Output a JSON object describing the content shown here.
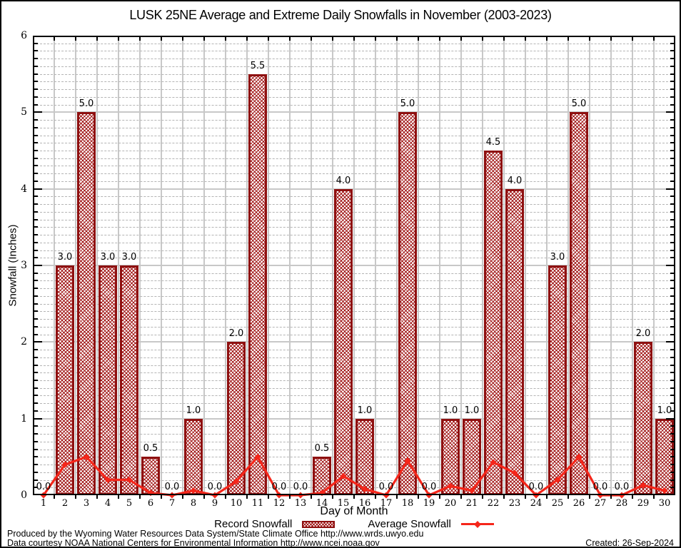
{
  "title": "LUSK 25NE Average and Extreme Daily Snowfalls in November (2003-2023)",
  "chart_data": {
    "type": "bar",
    "title": "LUSK 25NE Average and Extreme Daily Snowfalls in November (2003-2023)",
    "xlabel": "Day of Month",
    "ylabel": "Snowfall (Inches)",
    "ylim": [
      0,
      6
    ],
    "grid": {
      "y_major_step": 1,
      "y_minor_step": 0.1,
      "vertical_lines": "day boundaries"
    },
    "legend_position": "bottom-center",
    "categories": [
      1,
      2,
      3,
      4,
      5,
      6,
      7,
      8,
      9,
      10,
      11,
      12,
      13,
      14,
      15,
      16,
      17,
      18,
      19,
      20,
      21,
      22,
      23,
      24,
      25,
      26,
      27,
      28,
      29,
      30
    ],
    "series": [
      {
        "name": "Record Snowfall",
        "type": "bar",
        "values": [
          0,
          3,
          5,
          3,
          3,
          0.5,
          0,
          1,
          0,
          2,
          5.5,
          0,
          0,
          0.5,
          4,
          1,
          0,
          5,
          0,
          1,
          1,
          4.5,
          4,
          0,
          3,
          5,
          0,
          0,
          2,
          1
        ]
      },
      {
        "name": "Average Snowfall",
        "type": "line",
        "values": [
          0,
          0.4,
          0.5,
          0.2,
          0.2,
          0.03,
          0,
          0.06,
          0,
          0.18,
          0.5,
          0,
          0,
          0.03,
          0.25,
          0.08,
          0,
          0.45,
          0,
          0.12,
          0.06,
          0.43,
          0.29,
          0,
          0.2,
          0.5,
          0,
          0,
          0.13,
          0.06
        ]
      }
    ]
  },
  "y_axis": {
    "tick_labels": [
      "0",
      "1",
      "2",
      "3",
      "4",
      "5",
      "6"
    ]
  },
  "x_axis": {
    "tick_labels": [
      "1",
      "2",
      "3",
      "4",
      "5",
      "6",
      "7",
      "8",
      "9",
      "10",
      "11",
      "12",
      "13",
      "14",
      "15",
      "16",
      "17",
      "18",
      "19",
      "20",
      "21",
      "22",
      "23",
      "24",
      "25",
      "26",
      "27",
      "28",
      "29",
      "30"
    ]
  },
  "legend": {
    "record_label": "Record Snowfall",
    "average_label": "Average Snowfall"
  },
  "footer": {
    "line1": "Produced by the Wyoming Water Resources Data System/State Climate Office http://www.wrds.uwyo.edu",
    "line2": "Data courtesy NOAA National Centers for Environmental Information http://www.ncei.noaa.gov",
    "created": "Created: 26-Sep-2024"
  },
  "colors": {
    "bar_border": "#8e1010",
    "bar_hatch": "#a01515",
    "avg_line": "#f5261a",
    "grid_major": "#c8c8c8",
    "grid_minor": "#b4b4b4",
    "axis": "#000000",
    "background": "#ffffff"
  }
}
